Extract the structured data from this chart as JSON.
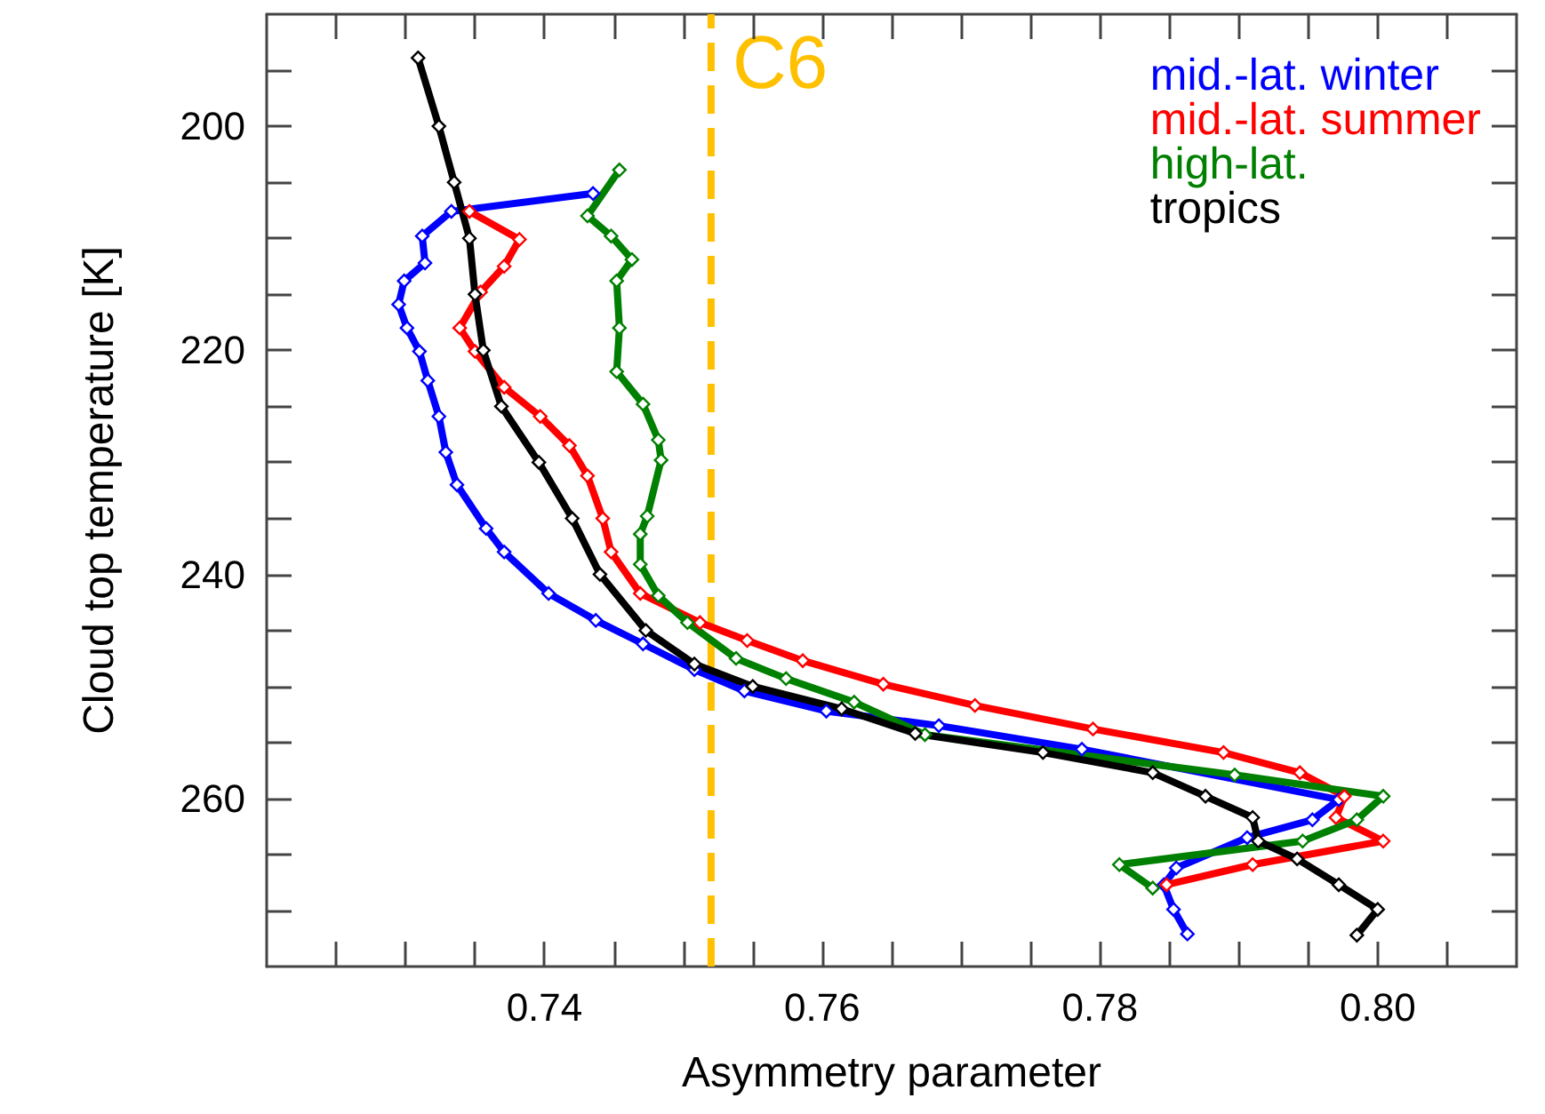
{
  "chart_data": {
    "type": "line",
    "xlabel": "Asymmetry parameter",
    "ylabel": "Cloud top temperature [K]",
    "xlim": [
      0.72,
      0.81
    ],
    "xticks": [
      {
        "value": 0.725,
        "label": null
      },
      {
        "value": 0.73,
        "label": null
      },
      {
        "value": 0.735,
        "label": null
      },
      0.74,
      {
        "value": 0.745,
        "label": null
      },
      {
        "value": 0.75,
        "label": null
      },
      {
        "value": 0.755,
        "label": null
      },
      0.76,
      {
        "value": 0.765,
        "label": null
      },
      {
        "value": 0.77,
        "label": null
      },
      {
        "value": 0.775,
        "label": null
      },
      0.78,
      {
        "value": 0.785,
        "label": null
      },
      {
        "value": 0.79,
        "label": null
      },
      {
        "value": 0.795,
        "label": null
      },
      {
        "value": 0.8,
        "label": "0.80"
      },
      {
        "value": 0.805,
        "label": null
      }
    ],
    "ylim": [
      275,
      190
    ],
    "yticks": [
      {
        "value": 195,
        "label": null
      },
      200,
      {
        "value": 205,
        "label": null
      },
      {
        "value": 210,
        "label": null
      },
      {
        "value": 215,
        "label": null
      },
      220,
      {
        "value": 225,
        "label": null
      },
      {
        "value": 230,
        "label": null
      },
      {
        "value": 235,
        "label": null
      },
      240,
      {
        "value": 245,
        "label": null
      },
      {
        "value": 250,
        "label": null
      },
      {
        "value": 255,
        "label": null
      },
      260,
      {
        "value": 265,
        "label": null
      },
      {
        "value": 270,
        "label": null
      }
    ],
    "grid": false,
    "legend": "top right",
    "marker": "diamond",
    "line_style": "solid",
    "ref_lines": [
      {
        "axis": "x",
        "value": 0.752,
        "label": "C6",
        "color": "#ffc000",
        "line_style": "dashed"
      }
    ],
    "series": [
      {
        "name": "mid.-lat. winter",
        "color": "#0000ff",
        "x": [
          0.7435,
          0.7333,
          0.7312,
          0.7314,
          0.7299,
          0.7295,
          0.7301,
          0.731,
          0.7316,
          0.7324,
          0.7329,
          0.7337,
          0.7358,
          0.7371,
          0.7403,
          0.7437,
          0.7471,
          0.7508,
          0.7544,
          0.7603,
          0.7684,
          0.7787,
          0.7972,
          0.7953,
          0.7906,
          0.7855,
          0.7846,
          0.7853,
          0.7863
        ],
        "values": [
          206,
          207.6,
          209.8,
          212.2,
          213.8,
          215.9,
          218,
          220.1,
          222.7,
          225.9,
          229.1,
          232,
          235.9,
          238,
          241.7,
          244.1,
          246.2,
          248.5,
          250.4,
          252.2,
          253.5,
          255.6,
          260.1,
          261.9,
          263.5,
          266.2,
          267.7,
          269.9,
          272.1
        ]
      },
      {
        "name": "mid.-lat. summer",
        "color": "#ff0000",
        "x": [
          0.7346,
          0.7382,
          0.7371,
          0.7354,
          0.7339,
          0.735,
          0.7371,
          0.7397,
          0.7418,
          0.7431,
          0.7442,
          0.7448,
          0.7469,
          0.7512,
          0.7546,
          0.7586,
          0.7644,
          0.771,
          0.7795,
          0.7889,
          0.7944,
          0.7976,
          0.797,
          0.8004,
          0.791,
          0.7848
        ],
        "values": [
          207.6,
          210.1,
          212.5,
          214.8,
          218,
          220.1,
          223.3,
          225.9,
          228.5,
          231.2,
          235,
          238,
          241.7,
          244.3,
          245.9,
          247.7,
          249.8,
          251.7,
          253.8,
          255.9,
          257.7,
          259.8,
          261.7,
          263.8,
          265.9,
          267.7
        ]
      },
      {
        "name": "high-lat.",
        "color": "#008000",
        "x": [
          0.7454,
          0.7431,
          0.7448,
          0.7463,
          0.7452,
          0.7454,
          0.7452,
          0.7471,
          0.7482,
          0.7484,
          0.7474,
          0.7469,
          0.7469,
          0.7482,
          0.7503,
          0.7538,
          0.7574,
          0.7623,
          0.7674,
          0.7897,
          0.8004,
          0.7985,
          0.7946,
          0.7814,
          0.7838
        ],
        "values": [
          203.9,
          208,
          209.8,
          211.9,
          213.8,
          218,
          221.9,
          224.8,
          228,
          229.8,
          234.8,
          236.4,
          239.1,
          241.9,
          244.3,
          247.5,
          249.3,
          251.4,
          254.3,
          257.9,
          259.8,
          261.9,
          263.8,
          265.9,
          268
        ]
      },
      {
        "name": "tropics",
        "color": "#000000",
        "x": [
          0.7309,
          0.7324,
          0.7335,
          0.7346,
          0.735,
          0.7356,
          0.7369,
          0.7396,
          0.742,
          0.744,
          0.7473,
          0.7508,
          0.755,
          0.7614,
          0.7667,
          0.7759,
          0.7838,
          0.7876,
          0.791,
          0.7914,
          0.7942,
          0.7972,
          0.8,
          0.7985
        ],
        "values": [
          193.9,
          200,
          205,
          210,
          215,
          220,
          225,
          230,
          235,
          240,
          245,
          248,
          250,
          252,
          254.2,
          255.9,
          257.7,
          259.8,
          261.7,
          263.8,
          265.4,
          267.7,
          269.9,
          272.2
        ]
      }
    ]
  }
}
